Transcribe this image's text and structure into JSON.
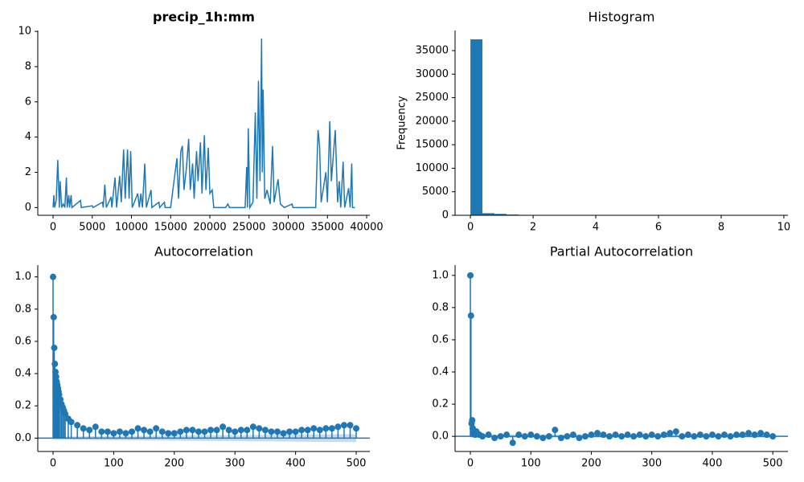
{
  "chart_data": [
    {
      "type": "line",
      "title": "precip_1h:mm",
      "color": "#1f77b4",
      "x": [
        0,
        100,
        200,
        400,
        600,
        800,
        900,
        1100,
        1300,
        1500,
        1700,
        1800,
        2000,
        2100,
        2300,
        2400,
        3500,
        3600,
        5000,
        5100,
        6300,
        6400,
        6600,
        6800,
        7400,
        7500,
        7900,
        8100,
        8500,
        8700,
        9000,
        9200,
        9500,
        9700,
        9900,
        10100,
        10800,
        11000,
        11200,
        11400,
        11700,
        11900,
        12500,
        12600,
        13500,
        13600,
        14200,
        14300,
        15000,
        15800,
        16000,
        16300,
        16500,
        16700,
        17000,
        17300,
        17500,
        17800,
        18000,
        18300,
        18500,
        18800,
        19000,
        19300,
        19500,
        19800,
        20000,
        20300,
        20500,
        22000,
        22300,
        22500,
        24500,
        24700,
        24800,
        24900,
        25100,
        25500,
        25800,
        26000,
        26200,
        26400,
        26600,
        26700,
        26800,
        27000,
        27300,
        27700,
        28000,
        28200,
        28700,
        29000,
        29500,
        30500,
        30600,
        33500,
        33800,
        34000,
        34200,
        34800,
        35000,
        35300,
        35500,
        36000,
        36300,
        36500,
        36700,
        37000,
        37200,
        37700,
        37900,
        38100,
        38200,
        38500
      ],
      "values": [
        0,
        0.7,
        0,
        0.4,
        2.7,
        0,
        1.5,
        0,
        0.2,
        0,
        1.7,
        0,
        0.7,
        0,
        0.7,
        0,
        0.4,
        0,
        0.1,
        0,
        0.3,
        0,
        1.3,
        0,
        0.6,
        0,
        1.7,
        0,
        1.8,
        0.3,
        3.3,
        0.5,
        3.3,
        0.5,
        3.2,
        0,
        0.8,
        0,
        0.8,
        0,
        2.5,
        0,
        1.0,
        0,
        0.3,
        0,
        0.3,
        0,
        0,
        2.8,
        0.5,
        3.2,
        3.5,
        1.0,
        2.2,
        3.9,
        1.0,
        2.5,
        0.5,
        3.2,
        1.5,
        3.7,
        0.8,
        4.1,
        1.0,
        3.4,
        0.8,
        1.0,
        0,
        0,
        0.2,
        0,
        0,
        2.3,
        0,
        4.5,
        0,
        0.3,
        5.4,
        0.5,
        7.2,
        1.5,
        9.6,
        2.0,
        6.7,
        0.5,
        1.0,
        0.2,
        3.5,
        0.3,
        1.6,
        0.2,
        0,
        0.2,
        0,
        0,
        4.4,
        3.5,
        0.3,
        2.0,
        0.3,
        4.9,
        1.5,
        4.4,
        0.3,
        1.5,
        0,
        2.6,
        0,
        1.1,
        0,
        2.5,
        0,
        0
      ],
      "xlim": [
        -1950,
        40410
      ],
      "ylim": [
        -0.44,
        10.05
      ],
      "xticks": [
        0,
        5000,
        10000,
        15000,
        20000,
        25000,
        30000,
        35000,
        40000
      ],
      "yticks": [
        0,
        2,
        4,
        6,
        8,
        10
      ]
    },
    {
      "type": "histogram",
      "title": "Histogram",
      "ylabel": "Frequency",
      "color": "#1f77b4",
      "bins": [
        0,
        0.384,
        0.768,
        1.152,
        1.536,
        1.92,
        2.304,
        2.688,
        3.072,
        3.456,
        3.84,
        4.224,
        4.608,
        4.992,
        5.376,
        5.76,
        6.144,
        6.528,
        6.912,
        7.296,
        7.68,
        8.064,
        8.448,
        8.832,
        9.216,
        9.6
      ],
      "counts": [
        37400,
        450,
        300,
        160,
        90,
        60,
        8,
        5,
        3,
        2,
        2,
        1,
        1,
        1,
        0,
        0,
        1,
        0,
        1,
        0,
        0,
        0,
        0,
        0,
        1
      ],
      "xlim": [
        -0.49,
        10.13
      ],
      "ylim": [
        0,
        39270
      ],
      "xticks": [
        0,
        2,
        4,
        6,
        8,
        10
      ],
      "yticks": [
        0,
        5000,
        10000,
        15000,
        20000,
        25000,
        30000,
        35000
      ]
    },
    {
      "type": "stem",
      "title": "Autocorrelation",
      "color": "#1f77b4",
      "x": [
        0,
        1,
        2,
        3,
        4,
        5,
        6,
        7,
        8,
        9,
        10,
        12,
        14,
        16,
        18,
        20,
        25,
        30,
        40,
        50,
        60,
        70,
        80,
        90,
        100,
        110,
        120,
        130,
        140,
        150,
        160,
        170,
        180,
        190,
        200,
        210,
        220,
        230,
        240,
        250,
        260,
        270,
        280,
        290,
        300,
        310,
        320,
        330,
        340,
        350,
        360,
        370,
        380,
        390,
        400,
        410,
        420,
        430,
        440,
        450,
        460,
        470,
        480,
        490,
        500
      ],
      "values": [
        1.0,
        0.75,
        0.56,
        0.46,
        0.41,
        0.38,
        0.35,
        0.33,
        0.31,
        0.29,
        0.27,
        0.24,
        0.21,
        0.19,
        0.17,
        0.15,
        0.12,
        0.1,
        0.08,
        0.06,
        0.05,
        0.07,
        0.04,
        0.04,
        0.03,
        0.04,
        0.03,
        0.04,
        0.06,
        0.05,
        0.04,
        0.06,
        0.04,
        0.03,
        0.03,
        0.04,
        0.05,
        0.05,
        0.04,
        0.04,
        0.05,
        0.05,
        0.07,
        0.05,
        0.04,
        0.05,
        0.05,
        0.07,
        0.06,
        0.05,
        0.04,
        0.04,
        0.03,
        0.04,
        0.04,
        0.05,
        0.05,
        0.06,
        0.05,
        0.06,
        0.06,
        0.07,
        0.08,
        0.08,
        0.06
      ],
      "confidence_band": {
        "x": [
          0,
          500
        ],
        "lower": [
          -0.01,
          -0.025
        ],
        "upper": [
          0.01,
          0.025
        ]
      },
      "xlim": [
        -25.2,
        522.5
      ],
      "ylim": [
        -0.083,
        1.073
      ],
      "xticks": [
        0,
        100,
        200,
        300,
        400,
        500
      ],
      "yticks": [
        {
          "value": 0,
          "label": "0.0"
        },
        {
          "value": 0.2,
          "label": "0.2"
        },
        {
          "value": 0.4,
          "label": "0.4"
        },
        {
          "value": 0.6,
          "label": "0.6"
        },
        {
          "value": 0.8,
          "label": "0.8"
        },
        {
          "value": 1,
          "label": "1.0"
        }
      ]
    },
    {
      "type": "stem",
      "title": "Partial Autocorrelation",
      "color": "#1f77b4",
      "x": [
        0,
        1,
        2,
        3,
        4,
        5,
        6,
        8,
        10,
        15,
        20,
        30,
        40,
        50,
        60,
        70,
        80,
        90,
        100,
        110,
        120,
        130,
        140,
        150,
        160,
        170,
        180,
        190,
        200,
        210,
        220,
        230,
        240,
        250,
        260,
        270,
        280,
        290,
        300,
        310,
        320,
        330,
        340,
        350,
        360,
        370,
        380,
        390,
        400,
        410,
        420,
        430,
        440,
        450,
        460,
        470,
        480,
        490,
        500
      ],
      "values": [
        1.0,
        0.75,
        0.08,
        0.1,
        0.05,
        0.03,
        0.02,
        0.01,
        0.03,
        0.01,
        0.0,
        0.01,
        -0.01,
        0.0,
        0.01,
        -0.04,
        0.01,
        0.0,
        0.01,
        0.0,
        -0.01,
        0.0,
        0.04,
        -0.01,
        0.0,
        0.01,
        -0.01,
        0.0,
        0.01,
        0.02,
        0.01,
        0.0,
        0.01,
        0.0,
        0.01,
        0.0,
        0.01,
        0.0,
        0.01,
        0.0,
        0.01,
        0.02,
        0.03,
        0.0,
        0.01,
        0.0,
        0.01,
        0.0,
        0.01,
        0.0,
        0.01,
        0.0,
        0.01,
        0.01,
        0.02,
        0.01,
        0.02,
        0.01,
        0.0
      ],
      "confidence_band": {
        "x": [
          0,
          500
        ],
        "lower": [
          -0.01,
          -0.01
        ],
        "upper": [
          0.01,
          0.01
        ]
      },
      "xlim": [
        -25.3,
        525
      ],
      "ylim": [
        -0.094,
        1.064
      ],
      "xticks": [
        0,
        100,
        200,
        300,
        400,
        500
      ],
      "yticks": [
        {
          "value": 0,
          "label": "0.0"
        },
        {
          "value": 0.2,
          "label": "0.2"
        },
        {
          "value": 0.4,
          "label": "0.4"
        },
        {
          "value": 0.6,
          "label": "0.6"
        },
        {
          "value": 0.8,
          "label": "0.8"
        },
        {
          "value": 1,
          "label": "1.0"
        }
      ]
    }
  ]
}
